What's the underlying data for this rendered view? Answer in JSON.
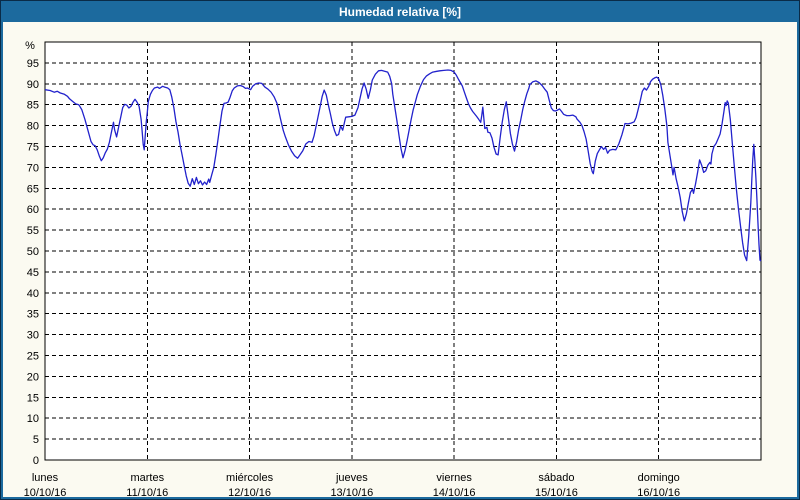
{
  "window": {
    "title": "Humedad relativa [%]"
  },
  "colors": {
    "titlebar_bg": "#1c6a9e",
    "titlebar_text": "#ffffff",
    "frame": "#1c6a9e",
    "outer_border": "#0a2b47",
    "page_bg": "#fbfaf1",
    "plot_bg": "#ffffff",
    "plot_border": "#000000",
    "grid": "#000000",
    "axis_text": "#000000",
    "line": "#2222cc"
  },
  "chart_data": {
    "type": "line",
    "title": "Humedad relativa [%]",
    "y_unit_label": "%",
    "ylim": [
      0,
      100
    ],
    "yticks": [
      0,
      5,
      10,
      15,
      20,
      25,
      30,
      35,
      40,
      45,
      50,
      55,
      60,
      65,
      70,
      75,
      80,
      85,
      90,
      95
    ],
    "grid": "horizontal dashed every 5 %, vertical dashed at each day boundary",
    "legend_position": "none",
    "x_axis": {
      "span_days": 7,
      "days": [
        {
          "name": "lunes",
          "date": "10/10/16"
        },
        {
          "name": "martes",
          "date": "11/10/16"
        },
        {
          "name": "miércoles",
          "date": "12/10/16"
        },
        {
          "name": "jueves",
          "date": "13/10/16"
        },
        {
          "name": "viernes",
          "date": "14/10/16"
        },
        {
          "name": "sábado",
          "date": "15/10/16"
        },
        {
          "name": "domingo",
          "date": "16/10/16"
        }
      ]
    },
    "series": [
      {
        "name": "Humedad relativa",
        "unit": "%",
        "t_days": [
          0.0,
          0.05,
          0.09,
          0.12,
          0.15,
          0.19,
          0.22,
          0.24,
          0.27,
          0.3,
          0.33,
          0.36,
          0.39,
          0.42,
          0.45,
          0.47,
          0.49,
          0.51,
          0.53,
          0.55,
          0.57,
          0.59,
          0.61,
          0.63,
          0.65,
          0.67,
          0.68,
          0.7,
          0.72,
          0.74,
          0.76,
          0.78,
          0.8,
          0.82,
          0.84,
          0.86,
          0.88,
          0.9,
          0.92,
          0.94,
          0.95,
          0.96,
          0.97,
          0.98,
          0.99,
          1.0,
          1.01,
          1.03,
          1.05,
          1.07,
          1.1,
          1.12,
          1.15,
          1.17,
          1.2,
          1.22,
          1.24,
          1.26,
          1.28,
          1.3,
          1.32,
          1.34,
          1.36,
          1.38,
          1.4,
          1.42,
          1.44,
          1.46,
          1.48,
          1.5,
          1.52,
          1.54,
          1.56,
          1.58,
          1.6,
          1.61,
          1.63,
          1.65,
          1.67,
          1.69,
          1.71,
          1.73,
          1.75,
          1.77,
          1.79,
          1.81,
          1.83,
          1.85,
          1.88,
          1.91,
          1.94,
          1.96,
          1.98,
          2.01,
          2.03,
          2.06,
          2.09,
          2.12,
          2.15,
          2.18,
          2.21,
          2.24,
          2.27,
          2.29,
          2.31,
          2.33,
          2.35,
          2.38,
          2.41,
          2.44,
          2.47,
          2.49,
          2.52,
          2.55,
          2.58,
          2.61,
          2.63,
          2.66,
          2.69,
          2.71,
          2.73,
          2.75,
          2.77,
          2.79,
          2.81,
          2.83,
          2.85,
          2.87,
          2.89,
          2.91,
          2.93,
          2.94,
          2.97,
          3.0,
          3.03,
          3.06,
          3.08,
          3.1,
          3.12,
          3.14,
          3.16,
          3.18,
          3.2,
          3.23,
          3.26,
          3.29,
          3.32,
          3.35,
          3.37,
          3.39,
          3.4,
          3.42,
          3.44,
          3.46,
          3.48,
          3.5,
          3.52,
          3.54,
          3.56,
          3.58,
          3.6,
          3.62,
          3.64,
          3.67,
          3.7,
          3.73,
          3.76,
          3.79,
          3.83,
          3.86,
          3.9,
          3.94,
          3.97,
          4.0,
          4.02,
          4.04,
          4.06,
          4.08,
          4.1,
          4.12,
          4.14,
          4.16,
          4.18,
          4.2,
          4.22,
          4.24,
          4.26,
          4.27,
          4.28,
          4.29,
          4.3,
          4.32,
          4.33,
          4.35,
          4.37,
          4.39,
          4.41,
          4.43,
          4.45,
          4.47,
          4.49,
          4.51,
          4.53,
          4.55,
          4.57,
          4.59,
          4.61,
          4.63,
          4.65,
          4.67,
          4.69,
          4.71,
          4.73,
          4.74,
          4.77,
          4.8,
          4.83,
          4.86,
          4.89,
          4.91,
          4.93,
          4.95,
          4.97,
          4.99,
          5.01,
          5.03,
          5.05,
          5.07,
          5.1,
          5.13,
          5.16,
          5.19,
          5.2,
          5.23,
          5.25,
          5.27,
          5.29,
          5.31,
          5.33,
          5.35,
          5.36,
          5.38,
          5.4,
          5.42,
          5.44,
          5.46,
          5.48,
          5.5,
          5.52,
          5.55,
          5.58,
          5.61,
          5.64,
          5.66,
          5.67,
          5.7,
          5.73,
          5.76,
          5.78,
          5.8,
          5.82,
          5.84,
          5.86,
          5.88,
          5.9,
          5.92,
          5.94,
          5.96,
          5.98,
          6.0,
          6.02,
          6.04,
          6.06,
          6.08,
          6.09,
          6.11,
          6.13,
          6.14,
          6.15,
          6.17,
          6.19,
          6.21,
          6.23,
          6.25,
          6.27,
          6.29,
          6.31,
          6.33,
          6.34,
          6.36,
          6.38,
          6.4,
          6.42,
          6.44,
          6.46,
          6.48,
          6.5,
          6.51,
          6.52,
          6.54,
          6.56,
          6.58,
          6.6,
          6.62,
          6.64,
          6.65,
          6.66,
          6.67,
          6.68,
          6.7,
          6.72,
          6.74,
          6.76,
          6.78,
          6.8,
          6.82,
          6.84,
          6.86,
          6.88,
          6.9,
          6.91,
          6.92,
          6.93,
          6.94,
          6.95,
          6.96,
          6.97,
          6.98,
          6.99,
          7.0
        ],
        "values": [
          88.6,
          88.4,
          88.0,
          88.2,
          87.8,
          87.5,
          87.0,
          86.4,
          85.8,
          85.2,
          85.0,
          83.8,
          81.5,
          78.8,
          76.2,
          75.4,
          75.2,
          74.2,
          72.8,
          71.6,
          72.3,
          73.5,
          74.4,
          76.0,
          78.5,
          80.8,
          79.0,
          77.3,
          79.6,
          82.0,
          84.3,
          85.1,
          84.9,
          84.2,
          84.6,
          85.6,
          86.3,
          85.6,
          84.6,
          81.5,
          78.5,
          75.5,
          74.2,
          77.5,
          81.0,
          83.2,
          85.8,
          87.5,
          88.4,
          89.0,
          89.2,
          88.9,
          89.4,
          89.2,
          89.0,
          88.6,
          86.8,
          84.2,
          81.0,
          78.5,
          75.5,
          73.0,
          70.5,
          68.0,
          66.2,
          65.5,
          67.3,
          65.9,
          67.6,
          66.1,
          66.8,
          65.8,
          66.5,
          65.9,
          67.2,
          66.4,
          68.2,
          70.0,
          73.0,
          76.5,
          80.0,
          83.5,
          85.3,
          85.4,
          85.6,
          86.8,
          88.3,
          89.0,
          89.5,
          89.6,
          89.3,
          88.9,
          89.0,
          88.6,
          89.4,
          90.0,
          90.2,
          90.1,
          89.2,
          88.7,
          88.0,
          86.9,
          85.2,
          83.0,
          80.8,
          78.8,
          77.3,
          75.4,
          73.9,
          72.8,
          72.2,
          72.9,
          74.0,
          75.6,
          76.2,
          76.0,
          77.5,
          81.0,
          84.5,
          87.0,
          88.5,
          87.3,
          85.0,
          82.8,
          80.5,
          78.8,
          77.6,
          77.9,
          79.9,
          78.9,
          81.0,
          82.0,
          82.1,
          82.2,
          82.5,
          84.3,
          86.5,
          88.8,
          90.2,
          88.7,
          86.5,
          88.5,
          90.9,
          92.3,
          93.1,
          93.2,
          93.0,
          92.8,
          91.8,
          90.0,
          87.5,
          84.4,
          81.2,
          77.8,
          74.5,
          72.3,
          74.0,
          76.4,
          78.9,
          81.5,
          83.8,
          85.6,
          87.4,
          89.4,
          91.0,
          91.9,
          92.4,
          92.8,
          93.0,
          93.1,
          93.2,
          93.3,
          93.2,
          92.8,
          92.1,
          91.2,
          90.3,
          89.5,
          88.0,
          86.6,
          85.2,
          84.2,
          83.4,
          82.8,
          82.2,
          81.5,
          80.8,
          82.5,
          84.4,
          81.8,
          79.3,
          79.6,
          78.4,
          78.3,
          77.0,
          74.8,
          73.2,
          73.0,
          77.2,
          80.8,
          83.8,
          85.7,
          81.8,
          78.1,
          75.6,
          73.9,
          76.0,
          79.0,
          81.2,
          83.8,
          85.8,
          87.6,
          88.9,
          89.8,
          90.5,
          90.7,
          90.3,
          89.6,
          88.6,
          88.0,
          86.0,
          84.2,
          83.6,
          83.5,
          83.7,
          84.0,
          83.4,
          82.7,
          82.4,
          82.4,
          82.5,
          82.1,
          81.6,
          80.8,
          80.0,
          78.6,
          76.8,
          74.0,
          70.9,
          69.0,
          68.5,
          71.5,
          73.3,
          74.2,
          75.0,
          74.3,
          74.8,
          73.4,
          74.1,
          74.3,
          74.2,
          75.6,
          77.8,
          79.5,
          80.5,
          80.4,
          80.6,
          80.9,
          82.0,
          84.0,
          86.0,
          88.2,
          89.0,
          88.5,
          89.3,
          90.5,
          91.1,
          91.4,
          91.6,
          91.2,
          89.8,
          87.2,
          83.8,
          79.9,
          76.0,
          72.8,
          69.8,
          68.2,
          70.0,
          67.3,
          65.3,
          62.8,
          59.5,
          57.2,
          58.8,
          61.5,
          64.0,
          64.8,
          63.8,
          66.0,
          68.8,
          71.8,
          70.5,
          68.8,
          69.2,
          70.5,
          71.2,
          70.8,
          73.2,
          75.0,
          75.7,
          76.8,
          78.0,
          80.5,
          83.8,
          85.5,
          84.8,
          85.9,
          85.4,
          81.5,
          75.5,
          70.0,
          64.5,
          60.0,
          56.0,
          52.0,
          49.0,
          47.7,
          53.5,
          61.5,
          67.0,
          72.0,
          75.5,
          71.5,
          67.5,
          62.5,
          57.0,
          51.5,
          47.8,
          47.6
        ]
      }
    ]
  }
}
